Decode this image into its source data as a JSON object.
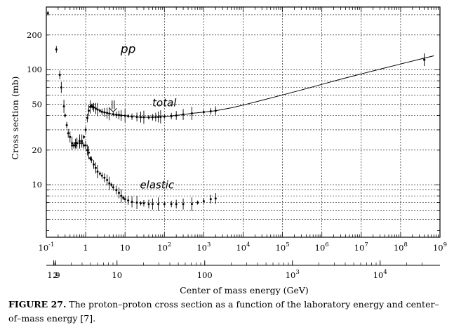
{
  "caption": {
    "label": "FIGURE 27.",
    "text": "The proton–proton cross section as a function of the laboratory energy and center–of–mass energy [7]."
  },
  "chart_data": {
    "type": "scatter",
    "title": "",
    "ylabel": "Cross section (mb)",
    "xlabel_bottom": "Center of mass energy (GeV)",
    "xlabel_top": "",
    "x_scale": "log",
    "y_scale": "log",
    "xlim": [
      0.1,
      1000000000
    ],
    "ylim": [
      3.5,
      350
    ],
    "grid": true,
    "top_ticks": [
      {
        "value": 0.1,
        "label": "10",
        "exp": "-1"
      },
      {
        "value": 1,
        "label": "1",
        "exp": ""
      },
      {
        "value": 10,
        "label": "10",
        "exp": ""
      },
      {
        "value": 100,
        "label": "10",
        "exp": "2"
      },
      {
        "value": 1000,
        "label": "10",
        "exp": "3"
      },
      {
        "value": 10000,
        "label": "10",
        "exp": "4"
      },
      {
        "value": 100000,
        "label": "10",
        "exp": "5"
      },
      {
        "value": 1000000,
        "label": "10",
        "exp": "6"
      },
      {
        "value": 10000000,
        "label": "10",
        "exp": "7"
      },
      {
        "value": 100000000,
        "label": "10",
        "exp": "8"
      },
      {
        "value": 1000000000,
        "label": "10",
        "exp": "9"
      }
    ],
    "bottom_ticks": [
      {
        "value": 1.9,
        "label": "1.9",
        "exp": ""
      },
      {
        "value": 2,
        "label": "2",
        "exp": ""
      },
      {
        "value": 10,
        "label": "10",
        "exp": ""
      },
      {
        "value": 100,
        "label": "100",
        "exp": ""
      },
      {
        "value": 1000,
        "label": "10",
        "exp": "3"
      },
      {
        "value": 10000,
        "label": "10",
        "exp": "4"
      }
    ],
    "y_ticks": [
      {
        "value": 10,
        "label": "10"
      },
      {
        "value": 20,
        "label": "20"
      },
      {
        "value": 50,
        "label": "50"
      },
      {
        "value": 100,
        "label": "100"
      },
      {
        "value": 200,
        "label": "200"
      }
    ],
    "annotations": [
      {
        "text": "pp",
        "x": 12,
        "y": 140
      },
      {
        "text": "total",
        "x": 100,
        "y": 48
      },
      {
        "text": "elastic",
        "x": 65,
        "y": 9.3
      }
    ],
    "arrow": {
      "x": 5,
      "y_from": 54,
      "y_to": 43
    },
    "series": [
      {
        "id": "total",
        "x": [
          0.11,
          0.18,
          0.22,
          0.24,
          0.28,
          0.3,
          0.33,
          0.36,
          0.4,
          0.45,
          0.5,
          0.55,
          0.6,
          0.7,
          0.8,
          0.9,
          1.0,
          1.1,
          1.2,
          1.3,
          1.4,
          1.5,
          1.6,
          1.8,
          2.0,
          2.3,
          2.6,
          3.0,
          3.5,
          4.0,
          5.0,
          6.0,
          7.0,
          8.0,
          10,
          12,
          15,
          20,
          25,
          30,
          40,
          50,
          60,
          70,
          80,
          100,
          150,
          200,
          300,
          500,
          1000,
          1500,
          2000
        ],
        "y": [
          310,
          150,
          90,
          70,
          48,
          40,
          33,
          28,
          26,
          23,
          22,
          22,
          23,
          23,
          24,
          26,
          30,
          38,
          44,
          47.5,
          48.5,
          47.5,
          47,
          46,
          45,
          44,
          43,
          42.5,
          42,
          41.5,
          41,
          40.5,
          40.3,
          40,
          39.8,
          39.5,
          39,
          38.8,
          38.7,
          38.6,
          38.5,
          38.6,
          38.7,
          38.8,
          38.9,
          39.1,
          39.5,
          40,
          40.8,
          41.7,
          42.8,
          43.5,
          44
        ]
      },
      {
        "id": "elastic",
        "x": [
          0.45,
          0.5,
          0.55,
          0.6,
          0.7,
          0.8,
          0.9,
          1.0,
          1.1,
          1.2,
          1.3,
          1.4,
          1.6,
          1.8,
          2.0,
          2.3,
          2.6,
          3.0,
          3.5,
          4.0,
          4.5,
          5.0,
          6.0,
          7.0,
          8.0,
          9.0,
          10,
          12,
          15,
          20,
          25,
          30,
          40,
          50,
          70,
          100,
          150,
          200,
          300,
          500,
          700,
          1000,
          1500,
          2000
        ],
        "y": [
          22,
          22,
          23,
          23,
          24,
          23,
          22,
          22,
          20,
          19,
          17,
          16.5,
          15,
          14,
          13,
          12.5,
          12,
          11.5,
          11,
          10.3,
          10,
          9.5,
          9,
          8.5,
          8,
          7.7,
          7.5,
          7.3,
          7.1,
          7.0,
          6.9,
          6.9,
          6.8,
          6.8,
          6.8,
          6.8,
          6.8,
          6.8,
          6.8,
          6.8,
          7.0,
          7.2,
          7.5,
          7.6
        ]
      },
      {
        "id": "fit",
        "x": [
          2,
          3,
          5,
          10,
          20,
          30,
          50,
          100,
          200,
          500,
          1000,
          2000,
          5000,
          10000,
          30000,
          100000,
          300000,
          1000000,
          3000000,
          10000000,
          30000000,
          100000000,
          300000000,
          700000000
        ],
        "y": [
          45,
          42.5,
          41,
          39.8,
          38.8,
          38.6,
          38.6,
          39.1,
          40,
          41.7,
          42.8,
          44,
          46.6,
          49.2,
          54.2,
          60.3,
          66.6,
          74.5,
          82.5,
          91.8,
          101,
          112,
          123,
          132
        ]
      },
      {
        "id": "high-energy-point",
        "x": [
          400000000
        ],
        "y": [
          122
        ]
      }
    ]
  }
}
